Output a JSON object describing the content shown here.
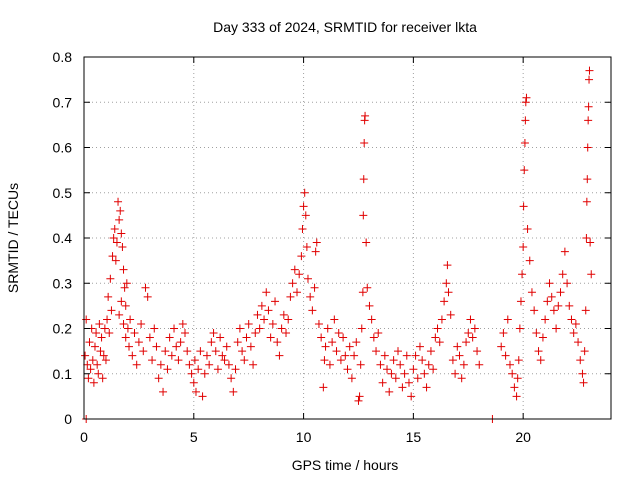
{
  "chart_data": {
    "type": "scatter",
    "title": "Day 333 of 2024, SRMTID for receiver lkta",
    "xlabel": "GPS time / hours",
    "ylabel": "SRMTID / TECUs",
    "xlim": [
      0,
      24
    ],
    "ylim": [
      0,
      0.8
    ],
    "x_ticks": [
      0,
      5,
      10,
      15,
      20
    ],
    "x_tick_labels": [
      "0",
      "5",
      "10",
      "15",
      "20"
    ],
    "y_ticks": [
      0,
      0.1,
      0.2,
      0.3,
      0.4,
      0.5,
      0.6,
      0.7,
      0.8
    ],
    "y_tick_labels": [
      "0",
      "0.1",
      "0.2",
      "0.3",
      "0.4",
      "0.5",
      "0.6",
      "0.7",
      "0.8"
    ],
    "grid": true,
    "marker": "+",
    "color": "#e00000",
    "series": [
      {
        "name": "SRMTID",
        "points": [
          [
            0.05,
            0.14
          ],
          [
            0.1,
            0.22
          ],
          [
            0.15,
            0.12
          ],
          [
            0.2,
            0.09
          ],
          [
            0.25,
            0.17
          ],
          [
            0.3,
            0.11
          ],
          [
            0.35,
            0.2
          ],
          [
            0.4,
            0.13
          ],
          [
            0.45,
            0.08
          ],
          [
            0.5,
            0.16
          ],
          [
            0.55,
            0.19
          ],
          [
            0.6,
            0.12
          ],
          [
            0.65,
            0.1
          ],
          [
            0.7,
            0.21
          ],
          [
            0.75,
            0.15
          ],
          [
            0.8,
            0.18
          ],
          [
            0.85,
            0.09
          ],
          [
            0.9,
            0.14
          ],
          [
            0.95,
            0.2
          ],
          [
            1.0,
            0.13
          ],
          [
            0.1,
            0.0
          ],
          [
            1.05,
            0.22
          ],
          [
            1.1,
            0.27
          ],
          [
            1.15,
            0.19
          ],
          [
            1.2,
            0.31
          ],
          [
            1.25,
            0.24
          ],
          [
            1.3,
            0.36
          ],
          [
            1.35,
            0.4
          ],
          [
            1.4,
            0.42
          ],
          [
            1.45,
            0.35
          ],
          [
            1.5,
            0.39
          ],
          [
            1.55,
            0.48
          ],
          [
            1.6,
            0.44
          ],
          [
            1.65,
            0.46
          ],
          [
            1.7,
            0.41
          ],
          [
            1.75,
            0.38
          ],
          [
            1.8,
            0.33
          ],
          [
            1.85,
            0.29
          ],
          [
            1.9,
            0.25
          ],
          [
            1.95,
            0.3
          ],
          [
            1.6,
            0.23
          ],
          [
            1.7,
            0.26
          ],
          [
            1.8,
            0.21
          ],
          [
            1.9,
            0.18
          ],
          [
            2.0,
            0.2
          ],
          [
            2.05,
            0.16
          ],
          [
            2.1,
            0.22
          ],
          [
            2.2,
            0.14
          ],
          [
            2.3,
            0.19
          ],
          [
            2.4,
            0.12
          ],
          [
            2.5,
            0.17
          ],
          [
            2.6,
            0.21
          ],
          [
            2.7,
            0.15
          ],
          [
            2.8,
            0.29
          ],
          [
            2.9,
            0.27
          ],
          [
            3.0,
            0.18
          ],
          [
            3.1,
            0.13
          ],
          [
            3.2,
            0.2
          ],
          [
            3.3,
            0.16
          ],
          [
            3.4,
            0.09
          ],
          [
            3.5,
            0.12
          ],
          [
            3.6,
            0.06
          ],
          [
            3.7,
            0.15
          ],
          [
            3.8,
            0.11
          ],
          [
            3.9,
            0.18
          ],
          [
            4.0,
            0.14
          ],
          [
            4.1,
            0.2
          ],
          [
            4.2,
            0.16
          ],
          [
            4.3,
            0.13
          ],
          [
            4.4,
            0.17
          ],
          [
            4.5,
            0.21
          ],
          [
            4.6,
            0.19
          ],
          [
            4.7,
            0.15
          ],
          [
            4.8,
            0.12
          ],
          [
            4.9,
            0.1
          ],
          [
            5.0,
            0.08
          ],
          [
            5.05,
            0.13
          ],
          [
            5.1,
            0.06
          ],
          [
            5.2,
            0.11
          ],
          [
            5.3,
            0.15
          ],
          [
            5.4,
            0.05
          ],
          [
            5.5,
            0.1
          ],
          [
            5.6,
            0.14
          ],
          [
            5.7,
            0.12
          ],
          [
            5.8,
            0.17
          ],
          [
            5.9,
            0.19
          ],
          [
            6.0,
            0.15
          ],
          [
            6.1,
            0.11
          ],
          [
            6.2,
            0.18
          ],
          [
            6.3,
            0.14
          ],
          [
            6.4,
            0.13
          ],
          [
            6.5,
            0.16
          ],
          [
            6.6,
            0.12
          ],
          [
            6.7,
            0.09
          ],
          [
            6.8,
            0.06
          ],
          [
            6.9,
            0.11
          ],
          [
            7.0,
            0.17
          ],
          [
            7.1,
            0.2
          ],
          [
            7.2,
            0.15
          ],
          [
            7.3,
            0.13
          ],
          [
            7.4,
            0.18
          ],
          [
            7.5,
            0.21
          ],
          [
            7.6,
            0.16
          ],
          [
            7.7,
            0.12
          ],
          [
            7.8,
            0.19
          ],
          [
            7.9,
            0.23
          ],
          [
            8.0,
            0.2
          ],
          [
            8.1,
            0.25
          ],
          [
            8.2,
            0.22
          ],
          [
            8.3,
            0.28
          ],
          [
            8.4,
            0.24
          ],
          [
            8.5,
            0.18
          ],
          [
            8.6,
            0.21
          ],
          [
            8.7,
            0.26
          ],
          [
            8.8,
            0.17
          ],
          [
            8.9,
            0.14
          ],
          [
            9.0,
            0.2
          ],
          [
            9.1,
            0.23
          ],
          [
            9.2,
            0.19
          ],
          [
            9.3,
            0.22
          ],
          [
            9.4,
            0.27
          ],
          [
            9.5,
            0.3
          ],
          [
            9.6,
            0.33
          ],
          [
            9.7,
            0.28
          ],
          [
            9.8,
            0.32
          ],
          [
            9.9,
            0.36
          ],
          [
            9.95,
            0.42
          ],
          [
            10.0,
            0.47
          ],
          [
            10.05,
            0.5
          ],
          [
            10.1,
            0.45
          ],
          [
            10.15,
            0.38
          ],
          [
            10.2,
            0.31
          ],
          [
            10.3,
            0.27
          ],
          [
            10.4,
            0.24
          ],
          [
            10.5,
            0.29
          ],
          [
            10.55,
            0.37
          ],
          [
            10.6,
            0.39
          ],
          [
            10.7,
            0.21
          ],
          [
            10.8,
            0.18
          ],
          [
            10.9,
            0.07
          ],
          [
            10.95,
            0.13
          ],
          [
            11.0,
            0.16
          ],
          [
            11.1,
            0.2
          ],
          [
            11.2,
            0.12
          ],
          [
            11.3,
            0.17
          ],
          [
            11.4,
            0.22
          ],
          [
            11.5,
            0.15
          ],
          [
            11.6,
            0.19
          ],
          [
            11.7,
            0.13
          ],
          [
            11.8,
            0.18
          ],
          [
            11.9,
            0.14
          ],
          [
            12.0,
            0.11
          ],
          [
            12.1,
            0.16
          ],
          [
            12.2,
            0.09
          ],
          [
            12.3,
            0.14
          ],
          [
            12.4,
            0.17
          ],
          [
            12.5,
            0.04
          ],
          [
            12.55,
            0.05
          ],
          [
            12.6,
            0.12
          ],
          [
            12.65,
            0.2
          ],
          [
            12.7,
            0.28
          ],
          [
            12.72,
            0.45
          ],
          [
            12.74,
            0.53
          ],
          [
            12.76,
            0.61
          ],
          [
            12.78,
            0.66
          ],
          [
            12.8,
            0.67
          ],
          [
            12.85,
            0.39
          ],
          [
            12.9,
            0.29
          ],
          [
            13.0,
            0.25
          ],
          [
            13.1,
            0.22
          ],
          [
            13.2,
            0.18
          ],
          [
            13.3,
            0.15
          ],
          [
            13.4,
            0.19
          ],
          [
            13.5,
            0.12
          ],
          [
            13.6,
            0.08
          ],
          [
            13.7,
            0.14
          ],
          [
            13.8,
            0.11
          ],
          [
            13.9,
            0.06
          ],
          [
            14.0,
            0.1
          ],
          [
            14.1,
            0.13
          ],
          [
            14.2,
            0.09
          ],
          [
            14.3,
            0.15
          ],
          [
            14.4,
            0.12
          ],
          [
            14.5,
            0.07
          ],
          [
            14.6,
            0.1
          ],
          [
            14.7,
            0.14
          ],
          [
            14.8,
            0.08
          ],
          [
            14.9,
            0.05
          ],
          [
            15.0,
            0.11
          ],
          [
            15.1,
            0.14
          ],
          [
            15.2,
            0.09
          ],
          [
            15.3,
            0.16
          ],
          [
            15.4,
            0.13
          ],
          [
            15.5,
            0.1
          ],
          [
            15.6,
            0.07
          ],
          [
            15.7,
            0.12
          ],
          [
            15.8,
            0.15
          ],
          [
            15.9,
            0.11
          ],
          [
            16.0,
            0.18
          ],
          [
            16.1,
            0.2
          ],
          [
            16.2,
            0.17
          ],
          [
            16.3,
            0.22
          ],
          [
            16.4,
            0.26
          ],
          [
            16.5,
            0.3
          ],
          [
            16.55,
            0.34
          ],
          [
            16.6,
            0.28
          ],
          [
            16.7,
            0.23
          ],
          [
            16.8,
            0.13
          ],
          [
            16.9,
            0.1
          ],
          [
            17.0,
            0.16
          ],
          [
            17.1,
            0.14
          ],
          [
            17.2,
            0.09
          ],
          [
            17.3,
            0.12
          ],
          [
            17.4,
            0.17
          ],
          [
            17.5,
            0.19
          ],
          [
            17.6,
            0.22
          ],
          [
            17.7,
            0.18
          ],
          [
            17.8,
            0.2
          ],
          [
            17.9,
            0.15
          ],
          [
            18.0,
            0.12
          ],
          [
            18.6,
            0.0
          ],
          [
            19.0,
            0.16
          ],
          [
            19.1,
            0.19
          ],
          [
            19.2,
            0.14
          ],
          [
            19.3,
            0.22
          ],
          [
            19.4,
            0.12
          ],
          [
            19.5,
            0.1
          ],
          [
            19.6,
            0.07
          ],
          [
            19.7,
            0.05
          ],
          [
            19.75,
            0.09
          ],
          [
            19.8,
            0.13
          ],
          [
            19.85,
            0.2
          ],
          [
            19.9,
            0.26
          ],
          [
            19.95,
            0.32
          ],
          [
            20.0,
            0.38
          ],
          [
            20.02,
            0.47
          ],
          [
            20.05,
            0.55
          ],
          [
            20.08,
            0.61
          ],
          [
            20.1,
            0.66
          ],
          [
            20.12,
            0.7
          ],
          [
            20.15,
            0.71
          ],
          [
            20.2,
            0.42
          ],
          [
            20.3,
            0.35
          ],
          [
            20.4,
            0.28
          ],
          [
            20.5,
            0.24
          ],
          [
            20.6,
            0.19
          ],
          [
            20.7,
            0.15
          ],
          [
            20.8,
            0.13
          ],
          [
            20.9,
            0.18
          ],
          [
            21.0,
            0.22
          ],
          [
            21.1,
            0.26
          ],
          [
            21.2,
            0.3
          ],
          [
            21.3,
            0.27
          ],
          [
            21.4,
            0.24
          ],
          [
            21.5,
            0.2
          ],
          [
            21.6,
            0.25
          ],
          [
            21.7,
            0.28
          ],
          [
            21.8,
            0.32
          ],
          [
            21.9,
            0.37
          ],
          [
            22.0,
            0.3
          ],
          [
            22.1,
            0.25
          ],
          [
            22.2,
            0.22
          ],
          [
            22.3,
            0.19
          ],
          [
            22.4,
            0.21
          ],
          [
            22.5,
            0.17
          ],
          [
            22.6,
            0.13
          ],
          [
            22.7,
            0.1
          ],
          [
            22.75,
            0.08
          ],
          [
            22.8,
            0.15
          ],
          [
            22.85,
            0.24
          ],
          [
            22.88,
            0.4
          ],
          [
            22.9,
            0.48
          ],
          [
            22.92,
            0.53
          ],
          [
            22.94,
            0.6
          ],
          [
            22.96,
            0.66
          ],
          [
            22.98,
            0.69
          ],
          [
            23.0,
            0.75
          ],
          [
            23.02,
            0.77
          ],
          [
            23.05,
            0.39
          ],
          [
            23.1,
            0.32
          ]
        ]
      }
    ]
  }
}
